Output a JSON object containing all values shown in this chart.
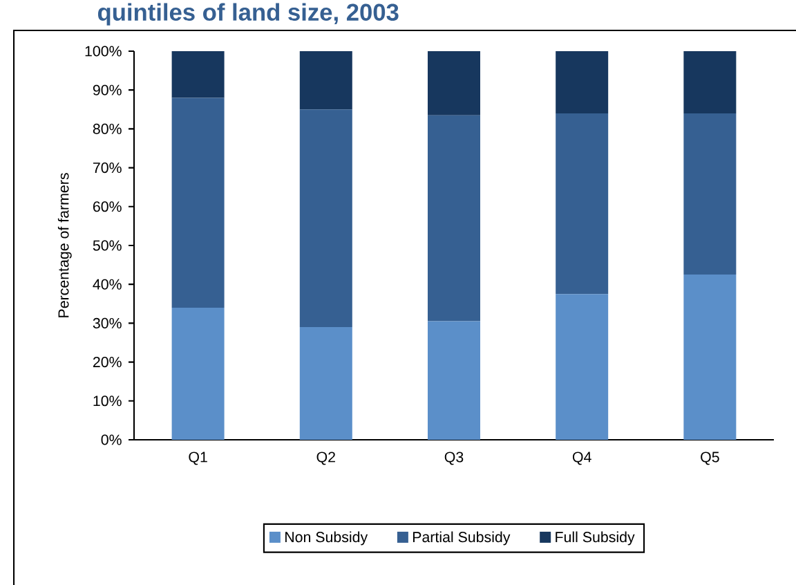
{
  "chart_data": {
    "type": "bar",
    "stacked": true,
    "title": "quintiles of land size, 2003",
    "ylabel": "Percentage of farmers",
    "categories": [
      "Q1",
      "Q2",
      "Q3",
      "Q4",
      "Q5"
    ],
    "series": [
      {
        "name": "Non Subsidy",
        "color": "#5b8fc9",
        "values": [
          34,
          29,
          30.5,
          37.5,
          42.5
        ]
      },
      {
        "name": "Partial Subsidy",
        "color": "#366092",
        "values": [
          54,
          56,
          53,
          46.5,
          41.5
        ]
      },
      {
        "name": "Full Subsidy",
        "color": "#17375e",
        "values": [
          12,
          15,
          16.5,
          16,
          16
        ]
      }
    ],
    "ylim": [
      0,
      100
    ],
    "yticks": [
      {
        "value": 0,
        "label": "0%"
      },
      {
        "value": 10,
        "label": "10%"
      },
      {
        "value": 20,
        "label": "20%"
      },
      {
        "value": 30,
        "label": "30%"
      },
      {
        "value": 40,
        "label": "40%"
      },
      {
        "value": 50,
        "label": "50%"
      },
      {
        "value": 60,
        "label": "60%"
      },
      {
        "value": 70,
        "label": "70%"
      },
      {
        "value": 80,
        "label": "80%"
      },
      {
        "value": 90,
        "label": "90%"
      },
      {
        "value": 100,
        "label": "100%"
      }
    ],
    "legend": "bottom"
  }
}
